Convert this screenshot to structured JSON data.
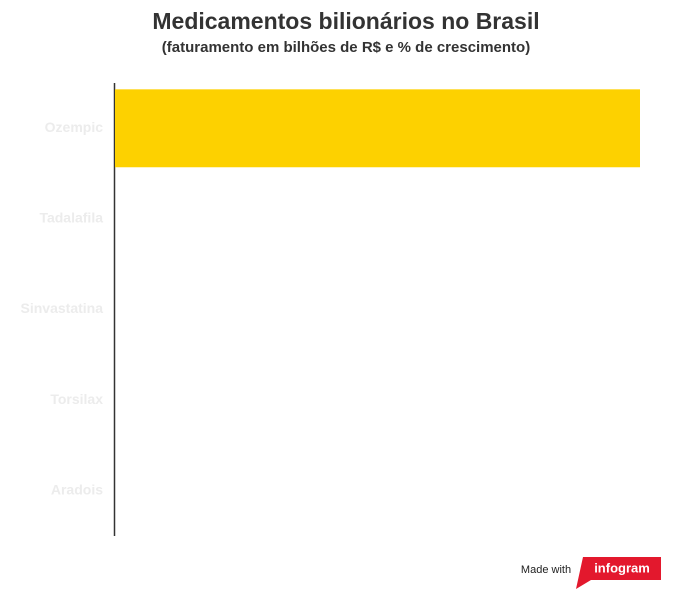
{
  "chart_data": {
    "type": "bar",
    "orientation": "horizontal",
    "title": "Medicamentos bilionários no Brasil",
    "subtitle": "(faturamento em bilhões de R$ e % de crescimento)",
    "categories": [
      "Ozempic",
      "Tadalafila",
      "Sinvastatina",
      "Torsilax",
      "Aradois"
    ],
    "values": [
      1,
      null,
      null,
      null,
      null
    ],
    "xlim": [
      0,
      1
    ],
    "color": "#fdd100",
    "footer": {
      "made_with": "Made with",
      "brand": "infogram"
    }
  }
}
